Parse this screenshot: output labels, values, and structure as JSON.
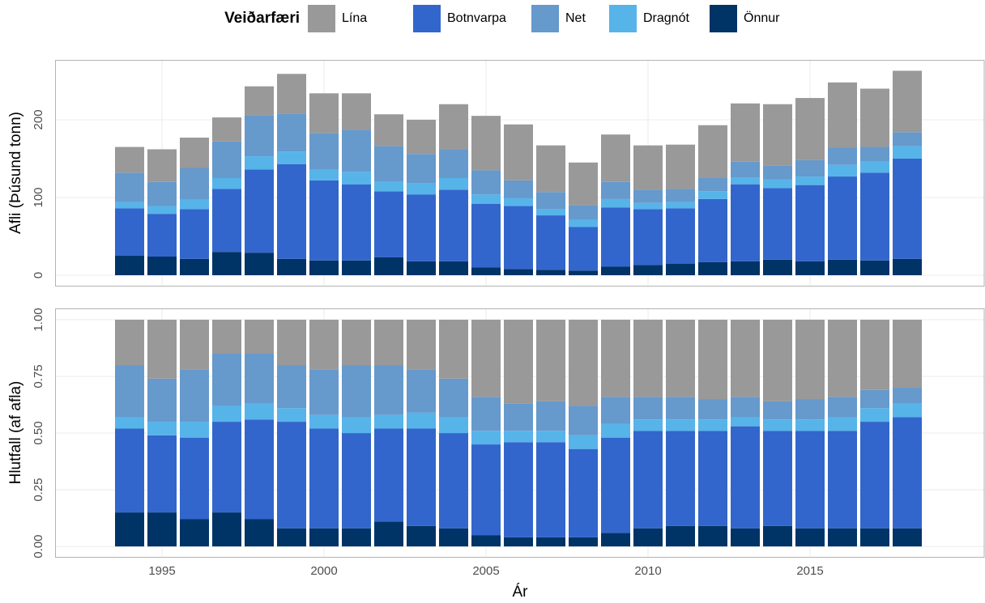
{
  "legend_title": "Veiðarfæri",
  "chart_data": [
    {
      "type": "bar",
      "stacked": true,
      "ylabel": "Afli (Þúsund tonn)",
      "x": [
        1994,
        1995,
        1996,
        1997,
        1998,
        1999,
        2000,
        2001,
        2002,
        2003,
        2004,
        2005,
        2006,
        2007,
        2008,
        2009,
        2010,
        2011,
        2012,
        2013,
        2014,
        2015,
        2016,
        2017,
        2018
      ],
      "xlim": [
        1991.7,
        2020.4
      ],
      "ylim": [
        -13.5,
        277
      ],
      "yticks": [
        0,
        100,
        200
      ],
      "grid": true,
      "series": [
        {
          "name": "Önnur",
          "color": "#003366",
          "values": [
            25,
            24,
            21,
            30,
            29,
            21,
            19,
            19,
            23,
            18,
            18,
            10,
            8,
            7,
            6,
            11,
            13,
            15,
            17,
            18,
            20,
            18,
            20,
            19,
            21
          ]
        },
        {
          "name": "Botnvarpa",
          "color": "#3366cc",
          "values": [
            61,
            55,
            64,
            81,
            107,
            122,
            103,
            98,
            85,
            86,
            92,
            82,
            81,
            70,
            56,
            76,
            72,
            71,
            81,
            99,
            92,
            98,
            107,
            113,
            129
          ]
        },
        {
          "name": "Dragnót",
          "color": "#56b4e9",
          "values": [
            8,
            10,
            12,
            14,
            17,
            16,
            14,
            16,
            12,
            14,
            15,
            12,
            10,
            8,
            9,
            11,
            8,
            8,
            10,
            9,
            11,
            11,
            15,
            14,
            16
          ]
        },
        {
          "name": "Net",
          "color": "#6699cc",
          "values": [
            38,
            31,
            41,
            47,
            53,
            49,
            47,
            54,
            46,
            38,
            37,
            31,
            23,
            22,
            19,
            22,
            17,
            17,
            17,
            20,
            18,
            21,
            22,
            19,
            18
          ]
        },
        {
          "name": "Lína",
          "color": "#999999",
          "values": [
            33,
            42,
            39,
            31,
            37,
            51,
            51,
            47,
            41,
            44,
            58,
            70,
            72,
            60,
            55,
            61,
            57,
            57,
            68,
            75,
            79,
            80,
            84,
            75,
            79
          ]
        }
      ]
    },
    {
      "type": "bar",
      "stacked": true,
      "ylabel": "Hlutfall (af afla)",
      "xlabel": "Ár",
      "x": [
        1994,
        1995,
        1996,
        1997,
        1998,
        1999,
        2000,
        2001,
        2002,
        2003,
        2004,
        2005,
        2006,
        2007,
        2008,
        2009,
        2010,
        2011,
        2012,
        2013,
        2014,
        2015,
        2016,
        2017,
        2018
      ],
      "xlim": [
        1991.7,
        2020.4
      ],
      "xticks": [
        1995,
        2000,
        2005,
        2010,
        2015
      ],
      "ylim": [
        -0.046,
        1.05
      ],
      "yticks": [
        {
          "value": 0,
          "label": "0.00"
        },
        0.25,
        {
          "value": 0.5,
          "label": "0.50"
        },
        0.75,
        {
          "value": 1,
          "label": "1.00"
        }
      ],
      "grid": true,
      "series": [
        {
          "values": [
            0.15,
            0.15,
            0.12,
            0.15,
            0.12,
            0.08,
            0.08,
            0.08,
            0.11,
            0.09,
            0.08,
            0.05,
            0.04,
            0.04,
            0.04,
            0.06,
            0.08,
            0.09,
            0.09,
            0.08,
            0.09,
            0.08,
            0.08,
            0.08,
            0.08
          ]
        },
        {
          "values": [
            0.37,
            0.34,
            0.36,
            0.4,
            0.44,
            0.47,
            0.44,
            0.42,
            0.41,
            0.43,
            0.42,
            0.4,
            0.42,
            0.42,
            0.39,
            0.42,
            0.43,
            0.42,
            0.42,
            0.45,
            0.42,
            0.43,
            0.43,
            0.47,
            0.49
          ]
        },
        {
          "values": [
            0.05,
            0.06,
            0.07,
            0.07,
            0.07,
            0.06,
            0.06,
            0.07,
            0.06,
            0.07,
            0.07,
            0.06,
            0.05,
            0.05,
            0.06,
            0.06,
            0.05,
            0.05,
            0.05,
            0.04,
            0.05,
            0.05,
            0.06,
            0.06,
            0.06
          ]
        },
        {
          "values": [
            0.23,
            0.19,
            0.23,
            0.23,
            0.22,
            0.19,
            0.2,
            0.23,
            0.22,
            0.19,
            0.17,
            0.15,
            0.12,
            0.13,
            0.13,
            0.12,
            0.1,
            0.1,
            0.09,
            0.09,
            0.08,
            0.09,
            0.09,
            0.08,
            0.07
          ]
        },
        {
          "values": [
            0.2,
            0.26,
            0.22,
            0.15,
            0.15,
            0.2,
            0.22,
            0.2,
            0.2,
            0.22,
            0.26,
            0.34,
            0.37,
            0.36,
            0.38,
            0.34,
            0.34,
            0.34,
            0.35,
            0.34,
            0.36,
            0.35,
            0.34,
            0.31,
            0.3
          ]
        }
      ]
    }
  ]
}
